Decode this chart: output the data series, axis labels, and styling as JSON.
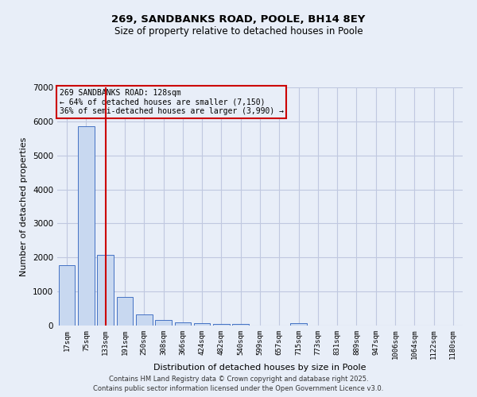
{
  "title_line1": "269, SANDBANKS ROAD, POOLE, BH14 8EY",
  "title_line2": "Size of property relative to detached houses in Poole",
  "xlabel": "Distribution of detached houses by size in Poole",
  "ylabel": "Number of detached properties",
  "bar_labels": [
    "17sqm",
    "75sqm",
    "133sqm",
    "191sqm",
    "250sqm",
    "308sqm",
    "366sqm",
    "424sqm",
    "482sqm",
    "540sqm",
    "599sqm",
    "657sqm",
    "715sqm",
    "773sqm",
    "831sqm",
    "889sqm",
    "947sqm",
    "1006sqm",
    "1064sqm",
    "1122sqm",
    "1180sqm"
  ],
  "bar_values": [
    1780,
    5850,
    2080,
    830,
    330,
    175,
    105,
    80,
    55,
    55,
    0,
    0,
    60,
    0,
    0,
    0,
    0,
    0,
    0,
    0,
    0
  ],
  "bar_color": "#c8d8f0",
  "bar_edge_color": "#4472c4",
  "vline_x_index": 2,
  "vline_color": "#cc0000",
  "annotation_text": "269 SANDBANKS ROAD: 128sqm\n← 64% of detached houses are smaller (7,150)\n36% of semi-detached houses are larger (3,990) →",
  "annotation_box_color": "#cc0000",
  "ylim": [
    0,
    7000
  ],
  "yticks": [
    0,
    1000,
    2000,
    3000,
    4000,
    5000,
    6000,
    7000
  ],
  "grid_color": "#c0c8e0",
  "bg_color": "#e8eef8",
  "footnote1": "Contains HM Land Registry data © Crown copyright and database right 2025.",
  "footnote2": "Contains public sector information licensed under the Open Government Licence v3.0."
}
